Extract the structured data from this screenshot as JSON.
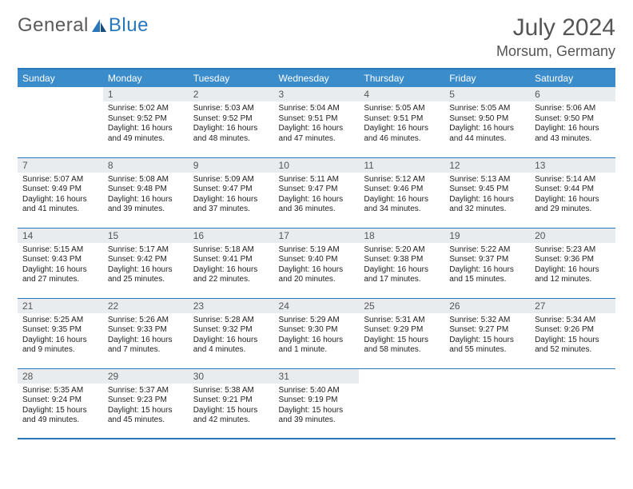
{
  "brand": {
    "part1": "General",
    "part2": "Blue"
  },
  "title": "July 2024",
  "location": "Morsum, Germany",
  "colors": {
    "header_bg": "#3b8ccb",
    "border": "#2976bb",
    "daynum_bg": "#e9ecef",
    "text": "#222222",
    "muted": "#555555"
  },
  "day_names": [
    "Sunday",
    "Monday",
    "Tuesday",
    "Wednesday",
    "Thursday",
    "Friday",
    "Saturday"
  ],
  "weeks": [
    [
      {
        "n": "",
        "sr": "",
        "ss": "",
        "dl": ""
      },
      {
        "n": "1",
        "sr": "Sunrise: 5:02 AM",
        "ss": "Sunset: 9:52 PM",
        "dl": "Daylight: 16 hours and 49 minutes."
      },
      {
        "n": "2",
        "sr": "Sunrise: 5:03 AM",
        "ss": "Sunset: 9:52 PM",
        "dl": "Daylight: 16 hours and 48 minutes."
      },
      {
        "n": "3",
        "sr": "Sunrise: 5:04 AM",
        "ss": "Sunset: 9:51 PM",
        "dl": "Daylight: 16 hours and 47 minutes."
      },
      {
        "n": "4",
        "sr": "Sunrise: 5:05 AM",
        "ss": "Sunset: 9:51 PM",
        "dl": "Daylight: 16 hours and 46 minutes."
      },
      {
        "n": "5",
        "sr": "Sunrise: 5:05 AM",
        "ss": "Sunset: 9:50 PM",
        "dl": "Daylight: 16 hours and 44 minutes."
      },
      {
        "n": "6",
        "sr": "Sunrise: 5:06 AM",
        "ss": "Sunset: 9:50 PM",
        "dl": "Daylight: 16 hours and 43 minutes."
      }
    ],
    [
      {
        "n": "7",
        "sr": "Sunrise: 5:07 AM",
        "ss": "Sunset: 9:49 PM",
        "dl": "Daylight: 16 hours and 41 minutes."
      },
      {
        "n": "8",
        "sr": "Sunrise: 5:08 AM",
        "ss": "Sunset: 9:48 PM",
        "dl": "Daylight: 16 hours and 39 minutes."
      },
      {
        "n": "9",
        "sr": "Sunrise: 5:09 AM",
        "ss": "Sunset: 9:47 PM",
        "dl": "Daylight: 16 hours and 37 minutes."
      },
      {
        "n": "10",
        "sr": "Sunrise: 5:11 AM",
        "ss": "Sunset: 9:47 PM",
        "dl": "Daylight: 16 hours and 36 minutes."
      },
      {
        "n": "11",
        "sr": "Sunrise: 5:12 AM",
        "ss": "Sunset: 9:46 PM",
        "dl": "Daylight: 16 hours and 34 minutes."
      },
      {
        "n": "12",
        "sr": "Sunrise: 5:13 AM",
        "ss": "Sunset: 9:45 PM",
        "dl": "Daylight: 16 hours and 32 minutes."
      },
      {
        "n": "13",
        "sr": "Sunrise: 5:14 AM",
        "ss": "Sunset: 9:44 PM",
        "dl": "Daylight: 16 hours and 29 minutes."
      }
    ],
    [
      {
        "n": "14",
        "sr": "Sunrise: 5:15 AM",
        "ss": "Sunset: 9:43 PM",
        "dl": "Daylight: 16 hours and 27 minutes."
      },
      {
        "n": "15",
        "sr": "Sunrise: 5:17 AM",
        "ss": "Sunset: 9:42 PM",
        "dl": "Daylight: 16 hours and 25 minutes."
      },
      {
        "n": "16",
        "sr": "Sunrise: 5:18 AM",
        "ss": "Sunset: 9:41 PM",
        "dl": "Daylight: 16 hours and 22 minutes."
      },
      {
        "n": "17",
        "sr": "Sunrise: 5:19 AM",
        "ss": "Sunset: 9:40 PM",
        "dl": "Daylight: 16 hours and 20 minutes."
      },
      {
        "n": "18",
        "sr": "Sunrise: 5:20 AM",
        "ss": "Sunset: 9:38 PM",
        "dl": "Daylight: 16 hours and 17 minutes."
      },
      {
        "n": "19",
        "sr": "Sunrise: 5:22 AM",
        "ss": "Sunset: 9:37 PM",
        "dl": "Daylight: 16 hours and 15 minutes."
      },
      {
        "n": "20",
        "sr": "Sunrise: 5:23 AM",
        "ss": "Sunset: 9:36 PM",
        "dl": "Daylight: 16 hours and 12 minutes."
      }
    ],
    [
      {
        "n": "21",
        "sr": "Sunrise: 5:25 AM",
        "ss": "Sunset: 9:35 PM",
        "dl": "Daylight: 16 hours and 9 minutes."
      },
      {
        "n": "22",
        "sr": "Sunrise: 5:26 AM",
        "ss": "Sunset: 9:33 PM",
        "dl": "Daylight: 16 hours and 7 minutes."
      },
      {
        "n": "23",
        "sr": "Sunrise: 5:28 AM",
        "ss": "Sunset: 9:32 PM",
        "dl": "Daylight: 16 hours and 4 minutes."
      },
      {
        "n": "24",
        "sr": "Sunrise: 5:29 AM",
        "ss": "Sunset: 9:30 PM",
        "dl": "Daylight: 16 hours and 1 minute."
      },
      {
        "n": "25",
        "sr": "Sunrise: 5:31 AM",
        "ss": "Sunset: 9:29 PM",
        "dl": "Daylight: 15 hours and 58 minutes."
      },
      {
        "n": "26",
        "sr": "Sunrise: 5:32 AM",
        "ss": "Sunset: 9:27 PM",
        "dl": "Daylight: 15 hours and 55 minutes."
      },
      {
        "n": "27",
        "sr": "Sunrise: 5:34 AM",
        "ss": "Sunset: 9:26 PM",
        "dl": "Daylight: 15 hours and 52 minutes."
      }
    ],
    [
      {
        "n": "28",
        "sr": "Sunrise: 5:35 AM",
        "ss": "Sunset: 9:24 PM",
        "dl": "Daylight: 15 hours and 49 minutes."
      },
      {
        "n": "29",
        "sr": "Sunrise: 5:37 AM",
        "ss": "Sunset: 9:23 PM",
        "dl": "Daylight: 15 hours and 45 minutes."
      },
      {
        "n": "30",
        "sr": "Sunrise: 5:38 AM",
        "ss": "Sunset: 9:21 PM",
        "dl": "Daylight: 15 hours and 42 minutes."
      },
      {
        "n": "31",
        "sr": "Sunrise: 5:40 AM",
        "ss": "Sunset: 9:19 PM",
        "dl": "Daylight: 15 hours and 39 minutes."
      },
      {
        "n": "",
        "sr": "",
        "ss": "",
        "dl": ""
      },
      {
        "n": "",
        "sr": "",
        "ss": "",
        "dl": ""
      },
      {
        "n": "",
        "sr": "",
        "ss": "",
        "dl": ""
      }
    ]
  ]
}
